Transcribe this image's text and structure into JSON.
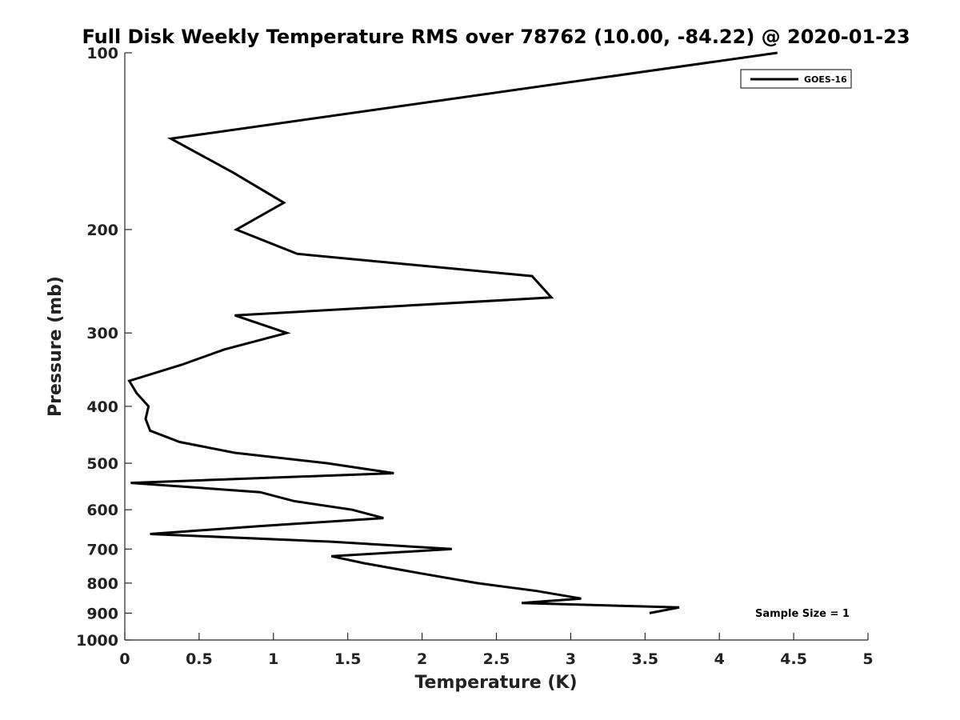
{
  "chart_data": {
    "type": "line",
    "title": "Full Disk Weekly Temperature RMS over 78762 (10.00, -84.22) @ 2020-01-23",
    "xlabel": "Temperature (K)",
    "ylabel": "Pressure (mb)",
    "xlim": [
      0,
      5
    ],
    "ylim": [
      100,
      1000
    ],
    "y_scale": "log",
    "y_reversed": true,
    "grid": false,
    "legend_placement": "top-right",
    "x_ticks": [
      0,
      0.5,
      1,
      1.5,
      2,
      2.5,
      3,
      3.5,
      4,
      4.5,
      5
    ],
    "x_tick_labels": [
      "0",
      "0.5",
      "1",
      "1.5",
      "2",
      "2.5",
      "3",
      "3.5",
      "4",
      "4.5",
      "5"
    ],
    "y_ticks": [
      100,
      200,
      300,
      400,
      500,
      600,
      700,
      800,
      900,
      1000
    ],
    "y_tick_labels": [
      "100",
      "200",
      "300",
      "400",
      "500",
      "600",
      "700",
      "800",
      "900",
      "1000"
    ],
    "series": [
      {
        "name": "GOES-16",
        "color": "#000000",
        "points": [
          {
            "x": 4.39,
            "p": 100
          },
          {
            "x": 0.31,
            "p": 140
          },
          {
            "x": 0.73,
            "p": 160
          },
          {
            "x": 1.07,
            "p": 180
          },
          {
            "x": 0.75,
            "p": 200
          },
          {
            "x": 1.16,
            "p": 220
          },
          {
            "x": 2.74,
            "p": 240
          },
          {
            "x": 2.87,
            "p": 261
          },
          {
            "x": 0.74,
            "p": 280
          },
          {
            "x": 1.09,
            "p": 300
          },
          {
            "x": 0.67,
            "p": 320
          },
          {
            "x": 0.38,
            "p": 340
          },
          {
            "x": 0.03,
            "p": 362
          },
          {
            "x": 0.08,
            "p": 380
          },
          {
            "x": 0.16,
            "p": 400
          },
          {
            "x": 0.14,
            "p": 420
          },
          {
            "x": 0.17,
            "p": 440
          },
          {
            "x": 0.37,
            "p": 460
          },
          {
            "x": 0.74,
            "p": 480
          },
          {
            "x": 1.36,
            "p": 500
          },
          {
            "x": 1.81,
            "p": 520
          },
          {
            "x": 0.04,
            "p": 540
          },
          {
            "x": 0.91,
            "p": 560
          },
          {
            "x": 1.14,
            "p": 580
          },
          {
            "x": 1.53,
            "p": 600
          },
          {
            "x": 1.74,
            "p": 620
          },
          {
            "x": 0.9,
            "p": 640
          },
          {
            "x": 0.17,
            "p": 660
          },
          {
            "x": 1.39,
            "p": 680
          },
          {
            "x": 2.2,
            "p": 700
          },
          {
            "x": 1.39,
            "p": 720
          },
          {
            "x": 1.61,
            "p": 740
          },
          {
            "x": 1.99,
            "p": 770
          },
          {
            "x": 2.37,
            "p": 800
          },
          {
            "x": 2.77,
            "p": 825
          },
          {
            "x": 3.07,
            "p": 850
          },
          {
            "x": 2.67,
            "p": 865
          },
          {
            "x": 3.73,
            "p": 880
          },
          {
            "x": 3.53,
            "p": 900
          }
        ]
      }
    ],
    "annotations": [
      "Sample Size = 1"
    ]
  }
}
